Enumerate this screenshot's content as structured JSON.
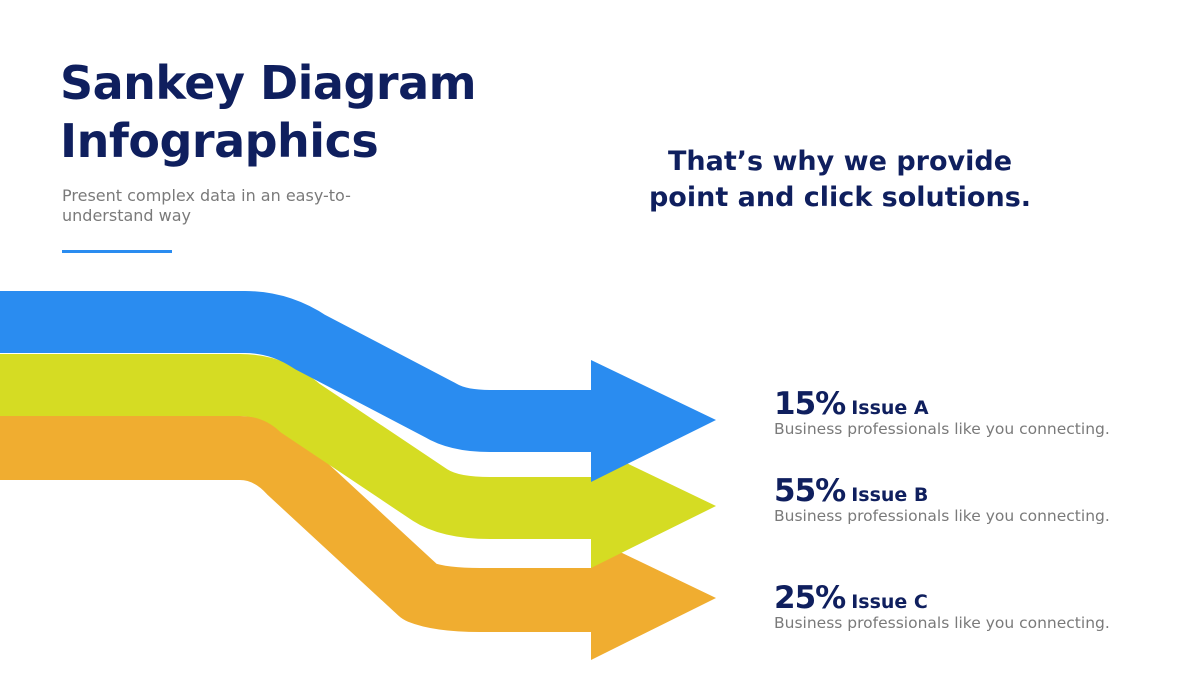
{
  "title_line1": "Sankey Diagram",
  "title_line2": "Infographics",
  "subtitle": "Present complex data in an easy-to-understand way",
  "tagline": "That’s why we provide point and click solutions.",
  "colors": {
    "navy": "#0f1f5e",
    "blue": "#2a8cf0",
    "yellow": "#d5dc23",
    "orange": "#f0ad30"
  },
  "items": [
    {
      "percent": "15%",
      "label": "Issue A",
      "description": "Business professionals like you connecting.",
      "color": "#2a8cf0"
    },
    {
      "percent": "55%",
      "label": "Issue B",
      "description": "Business professionals like you connecting.",
      "color": "#d5dc23"
    },
    {
      "percent": "25%",
      "label": "Issue C",
      "description": "Business professionals like you connecting.",
      "color": "#f0ad30"
    }
  ]
}
